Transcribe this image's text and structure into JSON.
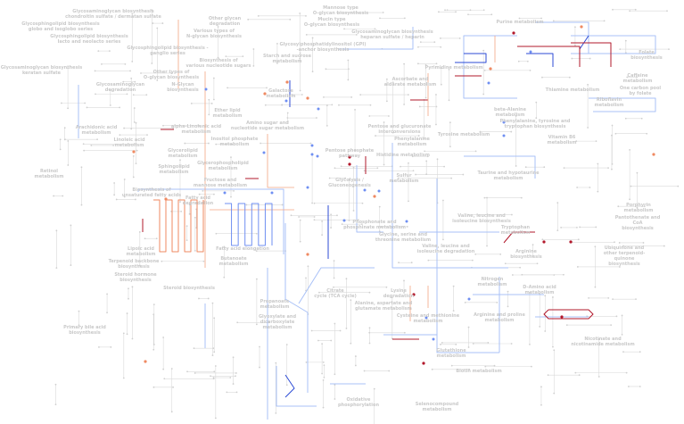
{
  "map": {
    "colors": {
      "base_line": "#d9d9d9",
      "node": "#cfcfcf",
      "up_strong": "#b2182b",
      "up": "#ef8a62",
      "up_light": "#f4a582",
      "down_strong": "#2c4bd6",
      "down": "#6f8ff2",
      "down_light": "#a8c1f7",
      "label": "#c9c9c9"
    },
    "pathways": [
      "Glycosaminoglycan biosynthesis\nchondroitin sulfate / dermatan sulfate",
      "Glycosphingolipid biosynthesis\nglobo and isoglobo series",
      "Glycosphingolipid biosynthesis\nlacto and neolacto series",
      "Glycosaminoglycan biosynthesis\nkeratan sulfate",
      "Glycosaminoglycan\ndegradation",
      "Other glycan\ndegradation",
      "Various types of\nN-glycan biosynthesis",
      "Mannose type\nO-glycan biosynthesis",
      "Mucin type\nO-glycan biosynthesis",
      "Glycosylphosphatidylinositol (GPI)\n-anchor biosynthesis",
      "Starch and sucrose\nmetabolism",
      "Glycosphingolipid biosynthesis -\nganglio series",
      "Other types of\nO-glycan biosynthesis",
      "Biosynthesis of\nvarious nucleotide sugars",
      "N-Glycan\nbiosynthesis",
      "Galactose\nmetabolism",
      "Ether lipid\nmetabolism",
      "Amino sugar and\nnucleotide sugar metabolism",
      "Inositol phosphate\nmetabolism",
      "Arachidonic acid\nmetabolism",
      "Linoleic acid\nmetabolism",
      "alpha-Linolenic acid\nmetabolism",
      "Glycosaminoglycan biosynthesis\nheparan sulfate / heparin",
      "Purine metabolism",
      "Folate biosynthesis",
      "Pyrimidine metabolism",
      "Ascorbate and\naldarate metabolism",
      "Caffeine\nmetabolism",
      "Thiamine metabolism",
      "One carbon pool\nby folate",
      "Riboflavin\nmetabolism",
      "beta-Alanine\nmetabolism",
      "Phenylalanine, tyrosine and\ntryptophan biosynthesis",
      "Pentose and glucuronate\ninterconversions",
      "Phenylalanine\nmetabolism",
      "Tyrosine metabolism",
      "Vitamin B6\nmetabolism",
      "Retinol\nmetabolism",
      "Glycerolipid\nmetabolism",
      "Glycerophospholipid\nmetabolism",
      "Sphingolipid\nmetabolism",
      "Fructose and\nmannose metabolism",
      "Biosynthesis of\nunsaturated fatty acids",
      "Fatty acid\ndegradation",
      "Lipoic acid\nmetabolism",
      "Fatty acid elongation",
      "Butanoate\nmetabolism",
      "Terpenoid backbone\nbiosynthesis",
      "Steroid hormone\nbiosynthesis",
      "Steroid biosynthesis",
      "Primary bile acid\nbiosynthesis",
      "Propanoate\nmetabolism",
      "Glyoxylate and\ndicarboxylate\nmetabolism",
      "Pentose phosphate\npathway",
      "Glycolysis /\nGluconeogenesis",
      "Histidine metabolism",
      "Sulfur\nmetabolism",
      "Taurine and hypotaurine\nmetabolism",
      "Porphyrin\nmetabolism",
      "Pantothenate and CoA\nbiosynthesis",
      "Valine, leucine and\nisoleucine biosynthesis",
      "Tryptophan\nmetabolism",
      "Phosphonate and\nphosphinate metabolism",
      "Glycine, serine and\nthreonine metabolism",
      "Valine, leucine and\nisoleucine degradation",
      "Arginine\nbiosynthesis",
      "Ubiquinone and\nother terpenoid-quinone\nbiosynthesis",
      "Nitrogen\nmetabolism",
      "Citrate\ncycle (TCA cycle)",
      "Lysine\ndegradation",
      "Alanine, aspartate and\nglutamate metabolism",
      "D-Amino acid\nmetabolism",
      "Cysteine and methionine\nmetabolism",
      "Arginine and proline\nmetabolism",
      "Glutathione\nmetabolism",
      "Nicotinate and\nnicotinamide metabolism",
      "Biotin metabolism",
      "Oxidative\nphosphorylation",
      "Selenocompound\nmetabolism"
    ]
  }
}
